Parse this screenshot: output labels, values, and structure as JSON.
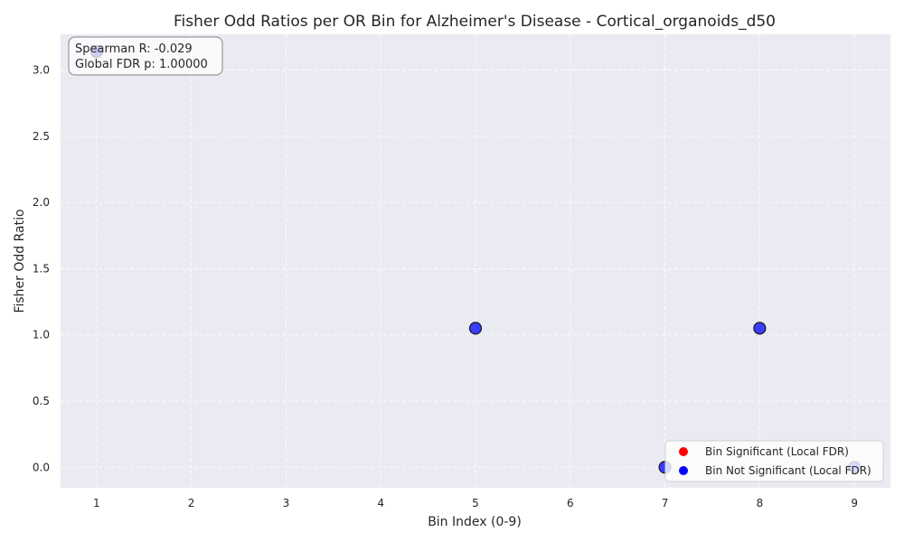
{
  "chart_data": {
    "type": "scatter",
    "title": "Fisher Odd Ratios per OR Bin for Alzheimer's Disease - Cortical_organoids_d50",
    "xlabel": "Bin Index (0-9)",
    "ylabel": "Fisher Odd Ratio",
    "xlim": [
      0.62,
      9.38
    ],
    "ylim": [
      -0.155,
      3.27
    ],
    "xticks": [
      1,
      2,
      3,
      4,
      5,
      6,
      7,
      8,
      9
    ],
    "yticks": [
      0.0,
      0.5,
      1.0,
      1.5,
      2.0,
      2.5,
      3.0
    ],
    "x_tick_labels": [
      "1",
      "2",
      "3",
      "4",
      "5",
      "6",
      "7",
      "8",
      "9"
    ],
    "y_tick_labels": [
      "0.0",
      "0.5",
      "1.0",
      "1.5",
      "2.0",
      "2.5",
      "3.0"
    ],
    "grid": true,
    "legend_position": "bottom-right",
    "series": [
      {
        "name": "Bin Significant (Local FDR)",
        "color": "#ff0000",
        "points": []
      },
      {
        "name": "Bin Not Significant (Local FDR)",
        "color": "#0000ff",
        "points": [
          {
            "x": 1,
            "y": 3.14
          },
          {
            "x": 5,
            "y": 1.05
          },
          {
            "x": 7,
            "y": 0.0
          },
          {
            "x": 8,
            "y": 1.05
          },
          {
            "x": 9,
            "y": 0.0
          }
        ]
      }
    ],
    "annotation": {
      "line1": "Spearman R: -0.029",
      "line2": "Global FDR p: 1.00000"
    },
    "colors": {
      "plot_bg": "#eaeaf2",
      "grid": "#ffffff",
      "text": "#262626"
    }
  }
}
